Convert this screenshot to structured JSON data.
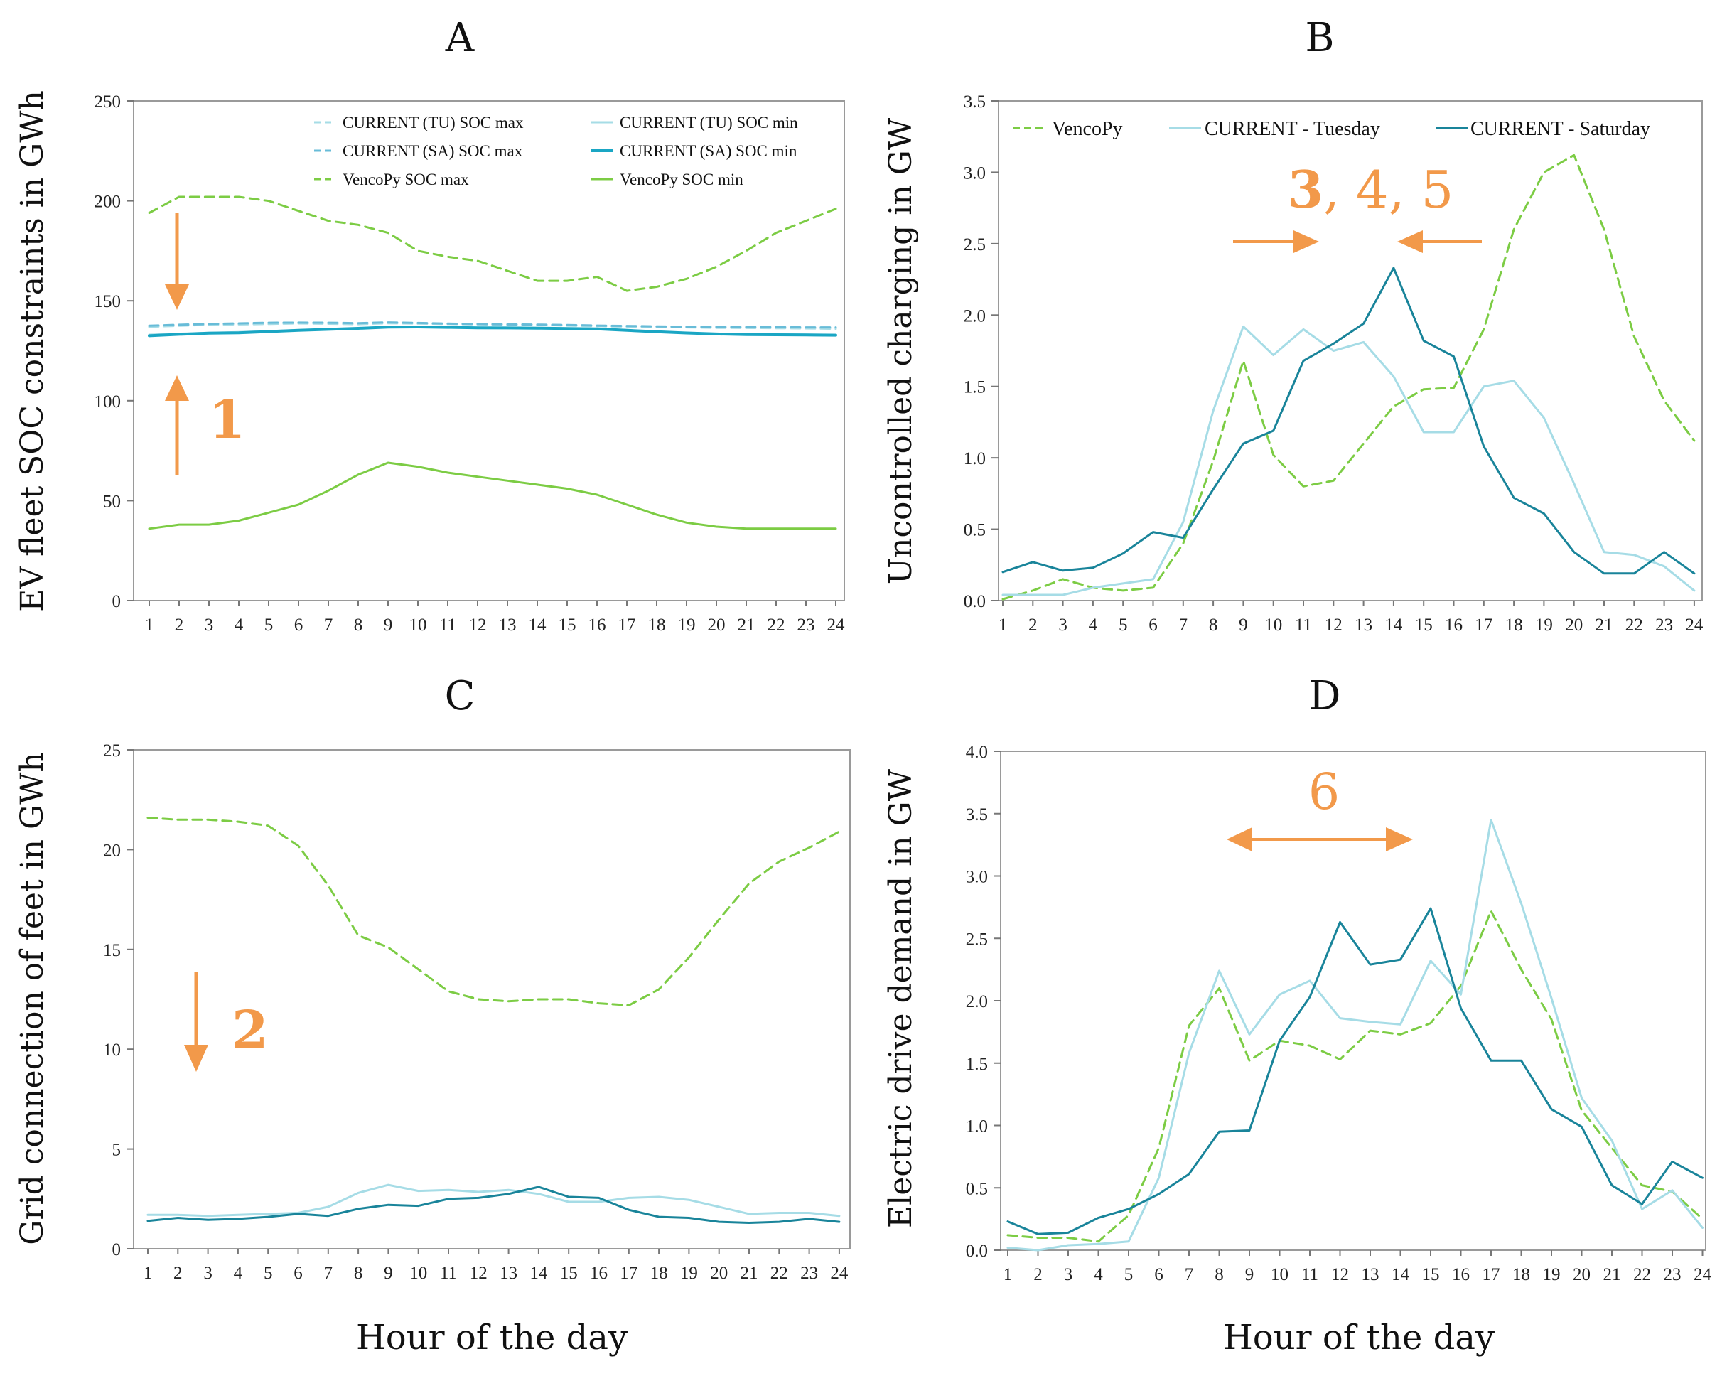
{
  "colors": {
    "vencopy": "#7ccc44",
    "current_tuesday": "#a6dce6",
    "current_saturday": "#19849a",
    "current_sa_min_a": "#1aa6c4",
    "current_sa_max_a": "#68bcd8",
    "annotation": "#f2994a",
    "axis": "#222222"
  },
  "shared": {
    "hours": [
      "1",
      "2",
      "3",
      "4",
      "5",
      "6",
      "7",
      "8",
      "9",
      "10",
      "11",
      "12",
      "13",
      "14",
      "15",
      "16",
      "17",
      "18",
      "19",
      "20",
      "21",
      "22",
      "23",
      "24"
    ],
    "xlabel": "Hour of the day"
  },
  "chart_data": [
    {
      "id": "A",
      "type": "line",
      "title": "A",
      "ylabel": "EV fleet SOC constraints in GWh",
      "ylim": [
        0,
        250
      ],
      "yticks": [
        "0",
        "50",
        "100",
        "150",
        "200",
        "250"
      ],
      "series": [
        {
          "name": "CURRENT (TU) SOC max",
          "color": "#a6dce6",
          "dash": true,
          "width": 3,
          "values": [
            137,
            137.5,
            138,
            138.2,
            138.4,
            138.7,
            138.5,
            138.3,
            138.8,
            138.6,
            138.4,
            138.2,
            138,
            138,
            137.6,
            137.3,
            137.1,
            137,
            136.7,
            136.5,
            136.4,
            136.3,
            136.2,
            136
          ]
        },
        {
          "name": "CURRENT (TU) SOC min",
          "color": "#a6dce6",
          "dash": false,
          "width": 3,
          "values": [
            133,
            133.5,
            134,
            134.3,
            134.8,
            135.3,
            135.8,
            136.3,
            137,
            137,
            136.8,
            136.6,
            136.5,
            136.4,
            136.2,
            136,
            135.3,
            134.6,
            134,
            133.5,
            133.3,
            133.2,
            133.1,
            133
          ]
        },
        {
          "name": "CURRENT (SA) SOC max",
          "color": "#68bcd8",
          "dash": true,
          "width": 3,
          "values": [
            137.5,
            138,
            138.4,
            138.7,
            139,
            139.1,
            139,
            138.8,
            139.2,
            138.9,
            138.6,
            138.4,
            138.2,
            138.1,
            137.9,
            137.6,
            137.4,
            137.2,
            137,
            136.9,
            136.8,
            136.8,
            136.7,
            136.7
          ]
        },
        {
          "name": "CURRENT (SA) SOC min",
          "color": "#1aa6c4",
          "dash": false,
          "width": 4,
          "values": [
            132.5,
            133.2,
            133.8,
            134,
            134.6,
            135.2,
            135.7,
            136.2,
            136.8,
            136.9,
            136.7,
            136.5,
            136.4,
            136.3,
            136.1,
            135.9,
            135.2,
            134.5,
            133.9,
            133.4,
            133.1,
            133,
            132.9,
            132.8
          ]
        },
        {
          "name": "VencoPy SOC max",
          "color": "#7ccc44",
          "dash": true,
          "width": 3,
          "values": [
            194,
            202,
            202,
            202,
            200,
            195,
            190,
            188,
            184,
            175,
            172,
            170,
            165,
            160,
            160,
            162,
            155,
            157,
            161,
            167,
            175,
            184,
            190,
            196
          ]
        },
        {
          "name": "VencoPy SOC min",
          "color": "#7ccc44",
          "dash": false,
          "width": 3,
          "values": [
            36,
            38,
            38,
            40,
            44,
            48,
            55,
            63,
            69,
            67,
            64,
            62,
            60,
            58,
            56,
            53,
            48,
            43,
            39,
            37,
            36,
            36,
            36,
            36
          ]
        }
      ],
      "legend": {
        "position": "top",
        "columns": 2,
        "entries": [
          "CURRENT (TU) SOC max",
          "CURRENT (TU) SOC min",
          "CURRENT (SA) SOC max",
          "CURRENT (SA) SOC min",
          "VencoPy SOC max",
          "VencoPy SOC min"
        ]
      },
      "annotations": [
        {
          "label": "1",
          "arrow": "converging"
        }
      ]
    },
    {
      "id": "B",
      "type": "line",
      "title": "B",
      "ylabel": "Uncontrolled charging in GW",
      "ylim": [
        0,
        3.5
      ],
      "yticks": [
        "0.0",
        "0.5",
        "1.0",
        "1.5",
        "2.0",
        "2.5",
        "3.0",
        "3.5"
      ],
      "series": [
        {
          "name": "VencoPy",
          "color": "#7ccc44",
          "dash": true,
          "width": 3,
          "values": [
            0.01,
            0.07,
            0.15,
            0.09,
            0.07,
            0.09,
            0.4,
            0.98,
            1.68,
            1.02,
            0.8,
            0.84,
            1.1,
            1.36,
            1.48,
            1.49,
            1.9,
            2.6,
            3.0,
            3.12,
            2.6,
            1.85,
            1.4,
            1.12
          ]
        },
        {
          "name": "CURRENT - Tuesday",
          "color": "#a6dce6",
          "dash": false,
          "width": 3,
          "values": [
            0.04,
            0.04,
            0.04,
            0.09,
            0.12,
            0.15,
            0.55,
            1.33,
            1.92,
            1.72,
            1.9,
            1.75,
            1.81,
            1.57,
            1.18,
            1.18,
            1.5,
            1.54,
            1.28,
            0.82,
            0.34,
            0.32,
            0.24,
            0.07
          ]
        },
        {
          "name": "CURRENT - Saturday",
          "color": "#19849a",
          "dash": false,
          "width": 3,
          "values": [
            0.2,
            0.27,
            0.21,
            0.23,
            0.33,
            0.48,
            0.44,
            0.78,
            1.1,
            1.19,
            1.68,
            1.8,
            1.94,
            2.33,
            1.82,
            1.71,
            1.08,
            0.72,
            0.61,
            0.34,
            0.19,
            0.19,
            0.34,
            0.19
          ]
        }
      ],
      "legend": {
        "position": "top",
        "columns": 3,
        "entries": [
          "VencoPy",
          "CURRENT - Tuesday",
          "CURRENT - Saturday"
        ]
      },
      "annotations": [
        {
          "label": "3",
          "rest": ", 4, 5",
          "arrow": "converging"
        }
      ]
    },
    {
      "id": "C",
      "type": "line",
      "title": "C",
      "ylabel": "Grid connection of feet in GWh",
      "ylim": [
        0,
        25
      ],
      "yticks": [
        "0",
        "5",
        "10",
        "15",
        "20",
        "25"
      ],
      "series": [
        {
          "name": "VencoPy",
          "color": "#7ccc44",
          "dash": true,
          "width": 3,
          "values": [
            21.6,
            21.5,
            21.5,
            21.4,
            21.2,
            20.2,
            18.2,
            15.7,
            15.1,
            14.0,
            12.9,
            12.5,
            12.4,
            12.5,
            12.5,
            12.3,
            12.2,
            13.0,
            14.6,
            16.5,
            18.3,
            19.4,
            20.1,
            20.9
          ]
        },
        {
          "name": "CURRENT - Tuesday",
          "color": "#a6dce6",
          "dash": false,
          "width": 3,
          "values": [
            1.7,
            1.7,
            1.65,
            1.7,
            1.75,
            1.8,
            2.1,
            2.8,
            3.2,
            2.9,
            2.95,
            2.85,
            2.95,
            2.75,
            2.35,
            2.35,
            2.55,
            2.6,
            2.45,
            2.1,
            1.75,
            1.8,
            1.8,
            1.65
          ]
        },
        {
          "name": "CURRENT - Saturday",
          "color": "#19849a",
          "dash": false,
          "width": 3,
          "values": [
            1.4,
            1.55,
            1.45,
            1.5,
            1.6,
            1.75,
            1.65,
            2.0,
            2.2,
            2.15,
            2.5,
            2.55,
            2.75,
            3.1,
            2.6,
            2.55,
            1.95,
            1.6,
            1.55,
            1.35,
            1.3,
            1.35,
            1.5,
            1.35
          ]
        }
      ],
      "annotations": [
        {
          "label": "2",
          "arrow": "down"
        }
      ]
    },
    {
      "id": "D",
      "type": "line",
      "title": "D",
      "ylabel": "Electric drive demand in GW",
      "ylim": [
        0,
        4.0
      ],
      "yticks": [
        "0.0",
        "0.5",
        "1.0",
        "1.5",
        "2.0",
        "2.5",
        "3.0",
        "3.5",
        "4.0"
      ],
      "series": [
        {
          "name": "VencoPy",
          "color": "#7ccc44",
          "dash": true,
          "width": 3,
          "values": [
            0.12,
            0.1,
            0.1,
            0.07,
            0.28,
            0.82,
            1.8,
            2.1,
            1.52,
            1.68,
            1.64,
            1.53,
            1.76,
            1.73,
            1.82,
            2.12,
            2.72,
            2.25,
            1.85,
            1.12,
            0.82,
            0.52,
            0.47,
            0.25
          ]
        },
        {
          "name": "CURRENT - Tuesday",
          "color": "#a6dce6",
          "dash": false,
          "width": 3,
          "values": [
            0.02,
            0.0,
            0.04,
            0.05,
            0.07,
            0.58,
            1.58,
            2.24,
            1.73,
            2.05,
            2.16,
            1.86,
            1.83,
            1.81,
            2.32,
            2.05,
            3.45,
            2.78,
            2.02,
            1.22,
            0.88,
            0.33,
            0.48,
            0.18
          ]
        },
        {
          "name": "CURRENT - Saturday",
          "color": "#19849a",
          "dash": false,
          "width": 3,
          "values": [
            0.23,
            0.13,
            0.14,
            0.26,
            0.33,
            0.45,
            0.61,
            0.95,
            0.96,
            1.68,
            2.03,
            2.63,
            2.29,
            2.33,
            2.74,
            1.94,
            1.52,
            1.52,
            1.13,
            0.99,
            0.52,
            0.37,
            0.71,
            0.58
          ]
        }
      ],
      "annotations": [
        {
          "label": "6",
          "arrow": "diverging"
        }
      ]
    }
  ]
}
